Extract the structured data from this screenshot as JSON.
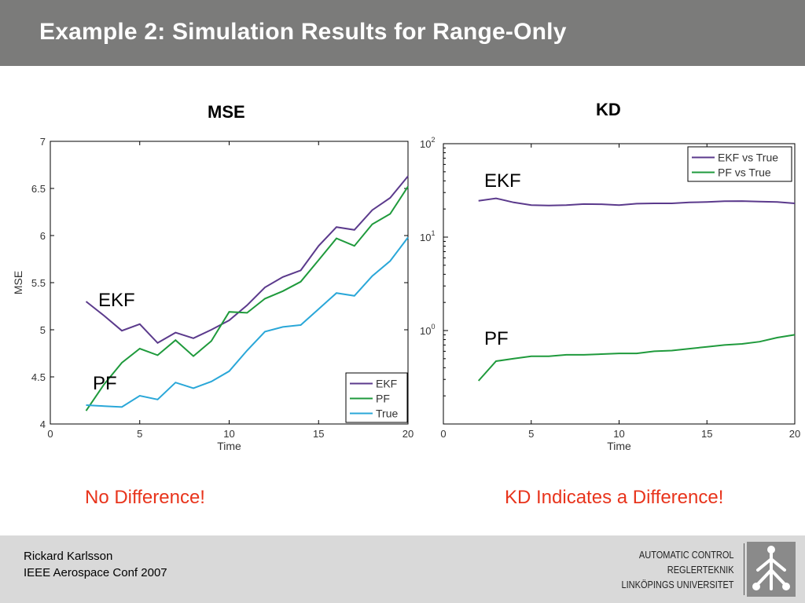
{
  "slide": {
    "title": "Example 2: Simulation Results for Range-Only"
  },
  "left_panel": {
    "heading": "MSE",
    "conclusion": "No Difference!"
  },
  "right_panel": {
    "heading": "KD",
    "conclusion": "KD Indicates a Difference!"
  },
  "footer": {
    "author": "Rickard Karlsson",
    "conference": "IEEE Aerospace Conf 2007",
    "org_lines": [
      "AUTOMATIC CONTROL",
      "REGLERTEKNIK",
      "LINKÖPINGS UNIVERSITET"
    ]
  },
  "colors": {
    "header_bg": "#7b7b7a",
    "conclusion_text": "#e8341c",
    "ekf": "#5b3a8c",
    "pf": "#1f9a3c",
    "true": "#2aa7d8"
  },
  "chart_data": [
    {
      "type": "line",
      "title": "MSE",
      "xlabel": "Time",
      "ylabel": "MSE",
      "xlim": [
        0,
        20
      ],
      "ylim": [
        4,
        7
      ],
      "xticks": [
        0,
        5,
        10,
        15,
        20
      ],
      "yticks": [
        4,
        4.5,
        5,
        5.5,
        6,
        6.5,
        7
      ],
      "x": [
        2,
        3,
        4,
        5,
        6,
        7,
        8,
        9,
        10,
        11,
        12,
        13,
        14,
        15,
        16,
        17,
        18,
        19,
        20
      ],
      "series": [
        {
          "name": "EKF",
          "values": [
            5.3,
            5.15,
            4.99,
            5.06,
            4.86,
            4.97,
            4.91,
            5.0,
            5.1,
            5.26,
            5.45,
            5.56,
            5.63,
            5.89,
            6.09,
            6.06,
            6.27,
            6.4,
            6.63
          ]
        },
        {
          "name": "PF",
          "values": [
            4.14,
            4.42,
            4.65,
            4.8,
            4.73,
            4.89,
            4.72,
            4.88,
            5.19,
            5.18,
            5.33,
            5.41,
            5.51,
            5.74,
            5.97,
            5.89,
            6.12,
            6.23,
            6.52
          ]
        },
        {
          "name": "True",
          "values": [
            4.2,
            4.19,
            4.18,
            4.3,
            4.26,
            4.44,
            4.38,
            4.45,
            4.56,
            4.78,
            4.98,
            5.03,
            5.05,
            5.22,
            5.39,
            5.36,
            5.57,
            5.73,
            5.98
          ]
        }
      ],
      "legend": "bottom-right",
      "annotations": [
        "EKF",
        "PF"
      ]
    },
    {
      "type": "line",
      "title": "KD",
      "xlabel": "Time",
      "ylabel": "",
      "scale_y": "log",
      "xlim": [
        0,
        20
      ],
      "ylim": [
        0.1,
        100
      ],
      "xticks": [
        0,
        5,
        10,
        15,
        20
      ],
      "ytick_labels": [
        "10^0",
        "10^1",
        "10^2"
      ],
      "x": [
        2,
        3,
        4,
        5,
        6,
        7,
        8,
        9,
        10,
        11,
        12,
        13,
        14,
        15,
        16,
        17,
        18,
        19,
        20
      ],
      "series": [
        {
          "name": "EKF vs True",
          "values": [
            24.5,
            26.0,
            23.5,
            22.0,
            21.8,
            22.0,
            22.6,
            22.5,
            22.0,
            22.8,
            23.0,
            23.0,
            23.5,
            23.8,
            24.2,
            24.3,
            24.0,
            23.8,
            23.0
          ]
        },
        {
          "name": "PF vs True",
          "values": [
            0.29,
            0.47,
            0.5,
            0.53,
            0.53,
            0.55,
            0.55,
            0.56,
            0.57,
            0.57,
            0.6,
            0.61,
            0.64,
            0.67,
            0.7,
            0.72,
            0.76,
            0.84,
            0.9
          ]
        }
      ],
      "legend": "top-right",
      "annotations": [
        "EKF",
        "PF"
      ]
    }
  ]
}
